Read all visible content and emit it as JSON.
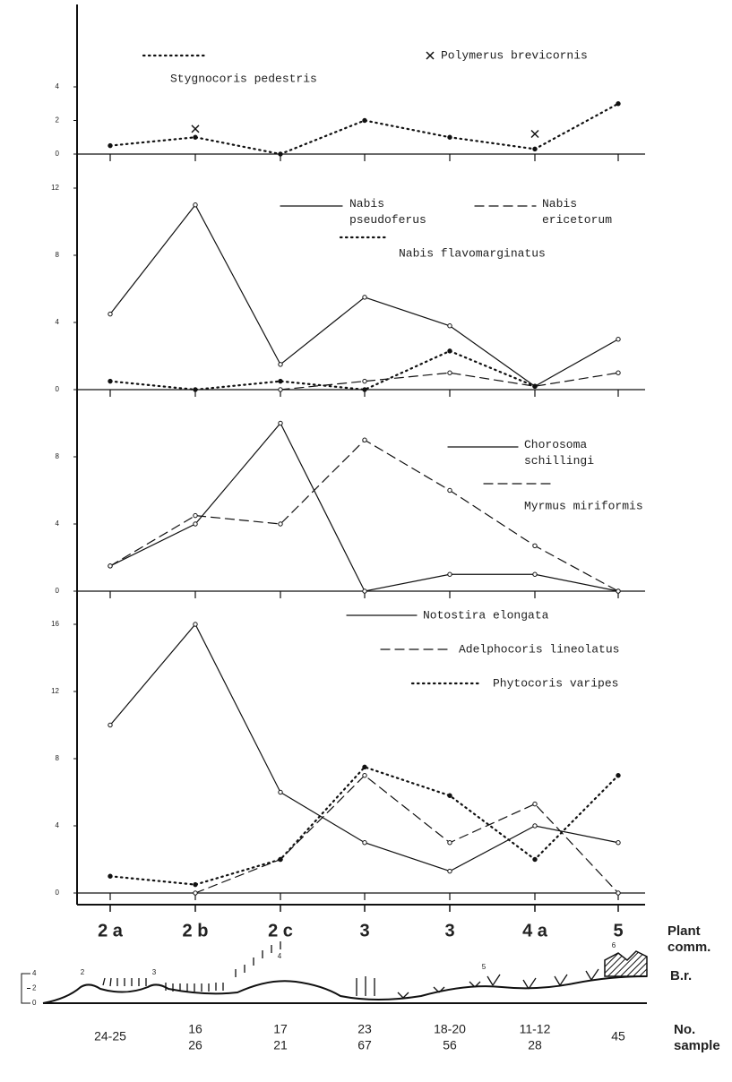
{
  "chart_data": [
    {
      "type": "line",
      "ylim": [
        0,
        4
      ],
      "yticks": [
        0,
        2,
        4
      ],
      "series": [
        {
          "name": "Stygnocoris pedestris",
          "color": "#111111",
          "dash": "dotted",
          "values": [
            0.5,
            1,
            0,
            2,
            1,
            0.3,
            3
          ]
        },
        {
          "name": "Polymerus brevicornis",
          "color": "#111111",
          "marker": "cross",
          "values": [
            null,
            1.5,
            null,
            null,
            null,
            1.2,
            null
          ]
        }
      ]
    },
    {
      "type": "line",
      "ylim": [
        0,
        12
      ],
      "yticks": [
        0,
        4,
        8,
        12
      ],
      "series": [
        {
          "name": "Nabis pseudoferus",
          "color": "#111111",
          "dash": "solid",
          "values": [
            4.5,
            11,
            1.5,
            5.5,
            3.8,
            0.2,
            3
          ]
        },
        {
          "name": "Nabis ericetorum",
          "color": "#111111",
          "dash": "dashed",
          "values": [
            null,
            null,
            0,
            0.5,
            1,
            0.2,
            1
          ]
        },
        {
          "name": "Nabis flavomarginatus",
          "color": "#111111",
          "dash": "dotted",
          "values": [
            0.5,
            0,
            0.5,
            0,
            2.3,
            0.2,
            null
          ]
        }
      ]
    },
    {
      "type": "line",
      "ylim": [
        0,
        10
      ],
      "yticks": [
        0,
        4,
        8
      ],
      "series": [
        {
          "name": "Chorosoma schillingi",
          "color": "#111111",
          "dash": "solid",
          "values": [
            1.5,
            4,
            10,
            0,
            1,
            1,
            0
          ]
        },
        {
          "name": "Myrmus miriformis",
          "color": "#111111",
          "dash": "dashed",
          "values": [
            1.5,
            4.5,
            4,
            9,
            6,
            2.7,
            0
          ]
        }
      ]
    },
    {
      "type": "line",
      "ylim": [
        0,
        16
      ],
      "yticks": [
        0,
        4,
        8,
        12,
        16
      ],
      "categories": [
        "2 a",
        "2 b",
        "2 c",
        "3",
        "3",
        "4 a",
        "5"
      ],
      "xlabel": "Plant comm.",
      "series": [
        {
          "name": "Notostira elongata",
          "color": "#111111",
          "dash": "solid",
          "values": [
            10,
            16,
            6,
            3,
            1.3,
            4,
            3
          ]
        },
        {
          "name": "Adelphocoris lineolatus",
          "color": "#111111",
          "dash": "dashed",
          "values": [
            null,
            0,
            2,
            7,
            3,
            5.3,
            0
          ]
        },
        {
          "name": "Phytocoris varipes",
          "color": "#111111",
          "dash": "dotted",
          "values": [
            1,
            0.5,
            2,
            7.5,
            5.8,
            2,
            7
          ]
        }
      ]
    }
  ],
  "profile": {
    "label": "B.r.",
    "yticks": [
      0,
      2,
      4
    ],
    "site_labels": [
      "2",
      "3",
      "4",
      "5",
      "6"
    ]
  },
  "samples": {
    "label": "No. sample",
    "values": [
      [
        "24-25"
      ],
      [
        "16",
        "26"
      ],
      [
        "17",
        "21"
      ],
      [
        "23",
        "67"
      ],
      [
        "18-20",
        "56"
      ],
      [
        "11-12",
        "28"
      ],
      [
        "45"
      ]
    ]
  }
}
